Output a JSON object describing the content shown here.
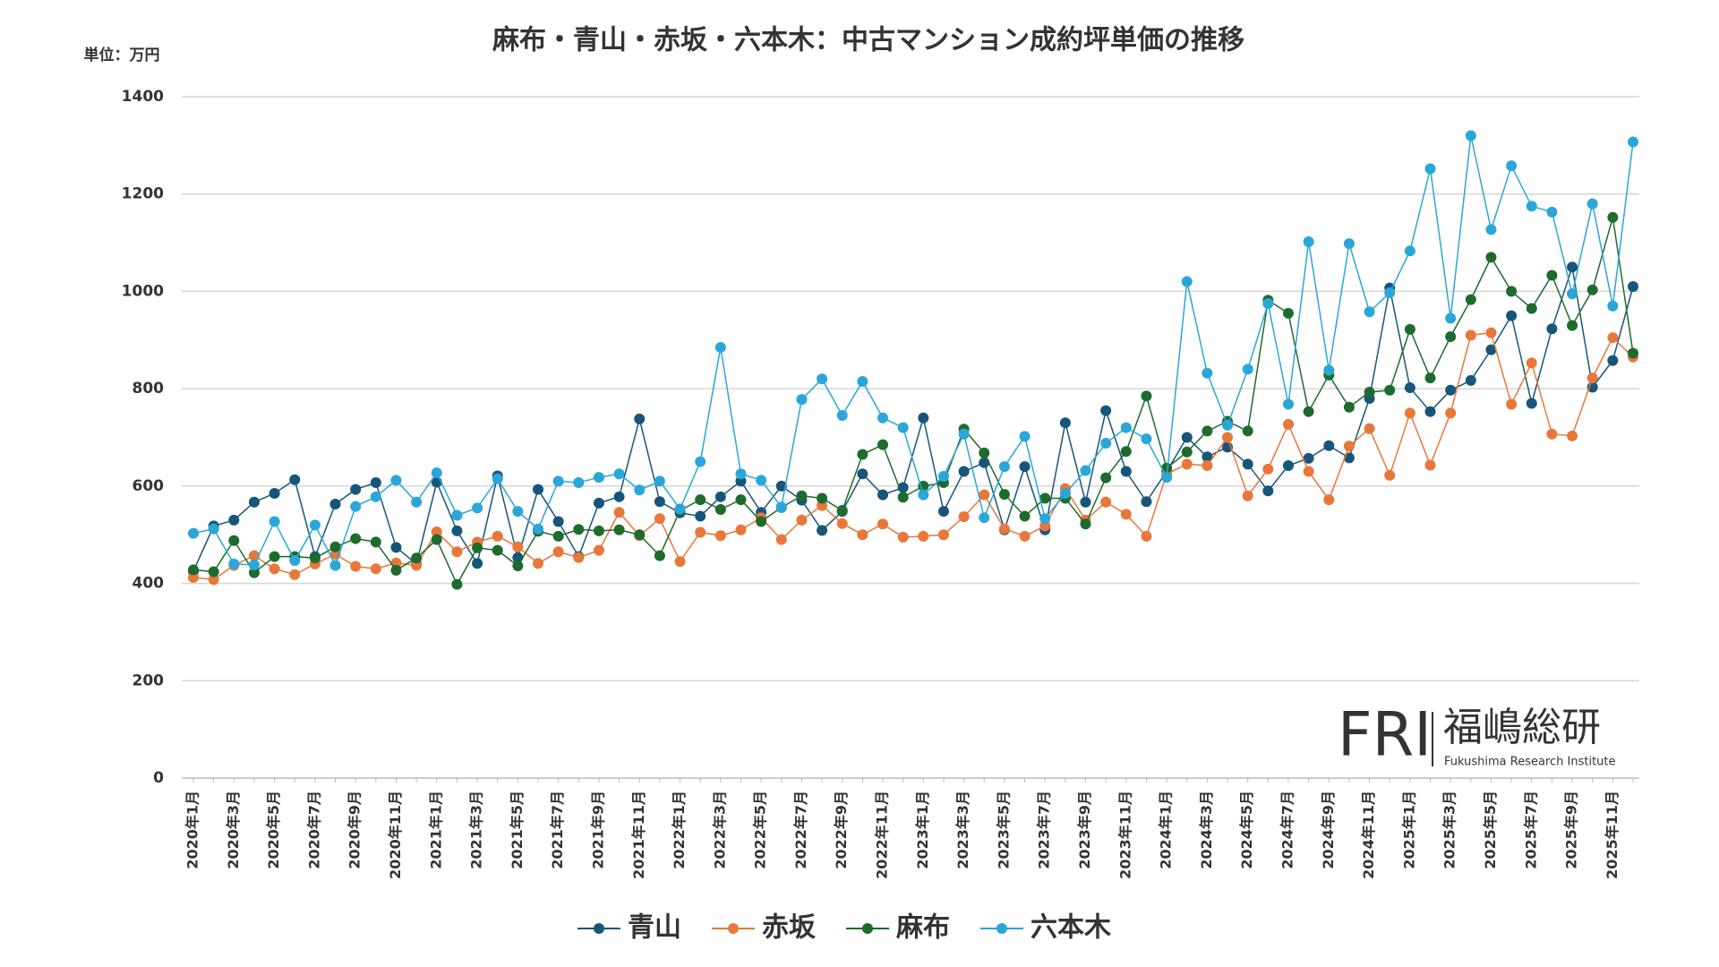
{
  "chart_data": {
    "type": "line",
    "title": "麻布・青山・赤坂・六本木：中古マンション成約坪単価の推移",
    "y_unit_label": "単位：万円",
    "categories": [
      "2020年1月",
      null,
      "2020年3月",
      null,
      "2020年5月",
      null,
      "2020年7月",
      null,
      "2020年9月",
      null,
      "2020年11月",
      null,
      "2021年1月",
      null,
      "2021年3月",
      null,
      "2021年5月",
      null,
      "2021年7月",
      null,
      "2021年9月",
      null,
      "2021年11月",
      null,
      "2022年1月",
      null,
      "2022年3月",
      null,
      "2022年5月",
      null,
      "2022年7月",
      null,
      "2022年9月",
      null,
      "2022年11月",
      null,
      "2023年1月",
      null,
      "2023年3月",
      null,
      "2023年5月",
      null,
      "2023年7月",
      null,
      "2023年9月",
      null,
      "2023年11月",
      null,
      "2024年1月",
      null,
      "2024年3月",
      null,
      "2024年5月",
      null,
      "2024年7月",
      null,
      "2024年9月",
      null,
      "2024年11月",
      null,
      "2025年1月",
      null,
      "2025年3月",
      null,
      "2025年5月",
      null,
      "2025年7月",
      null,
      "2025年9月",
      null,
      "2025年11月",
      null
    ],
    "series": [
      {
        "name": "青山",
        "color": "#17567a",
        "values": [
          425,
          518,
          530,
          567,
          585,
          613,
          455,
          563,
          593,
          607,
          474,
          440,
          608,
          508,
          441,
          621,
          453,
          593,
          527,
          455,
          565,
          578,
          738,
          568,
          545,
          538,
          578,
          610,
          546,
          600,
          571,
          509,
          548,
          625,
          582,
          597,
          740,
          548,
          630,
          648,
          510,
          640,
          510,
          730,
          567,
          755,
          630,
          568,
          630,
          700,
          660,
          680,
          645,
          590,
          642,
          657,
          683,
          658,
          780,
          1007,
          802,
          753,
          797,
          817,
          880,
          950,
          770,
          923,
          1050,
          803,
          858,
          1010
        ]
      },
      {
        "name": "赤坂",
        "color": "#e8773a",
        "values": [
          412,
          408,
          437,
          457,
          430,
          418,
          440,
          460,
          435,
          430,
          442,
          437,
          506,
          465,
          485,
          497,
          475,
          441,
          465,
          453,
          468,
          546,
          498,
          533,
          445,
          505,
          498,
          510,
          535,
          490,
          530,
          560,
          523,
          500,
          522,
          495,
          497,
          500,
          537,
          582,
          512,
          497,
          518,
          595,
          530,
          567,
          542,
          497,
          625,
          645,
          642,
          700,
          580,
          635,
          727,
          630,
          572,
          682,
          718,
          622,
          750,
          643,
          750,
          910,
          915,
          768,
          853,
          707,
          703,
          822,
          905,
          865
        ]
      },
      {
        "name": "麻布",
        "color": "#1e6b2e",
        "values": [
          428,
          424,
          488,
          422,
          455,
          455,
          452,
          475,
          492,
          485,
          427,
          452,
          490,
          398,
          473,
          468,
          436,
          507,
          497,
          511,
          508,
          510,
          500,
          457,
          550,
          572,
          552,
          572,
          527,
          556,
          580,
          575,
          550,
          665,
          685,
          577,
          600,
          607,
          717,
          668,
          583,
          538,
          575,
          575,
          522,
          617,
          671,
          785,
          637,
          670,
          713,
          733,
          713,
          982,
          955,
          753,
          828,
          762,
          793,
          797,
          922,
          822,
          907,
          983,
          1070,
          1000,
          965,
          1033,
          930,
          1003,
          1152,
          873
        ]
      },
      {
        "name": "六本木",
        "color": "#2aa6d9",
        "values": [
          503,
          512,
          440,
          438,
          527,
          447,
          520,
          437,
          558,
          578,
          612,
          567,
          627,
          540,
          555,
          615,
          548,
          512,
          610,
          607,
          618,
          625,
          592,
          610,
          553,
          650,
          885,
          625,
          612,
          557,
          778,
          820,
          745,
          815,
          740,
          720,
          582,
          620,
          707,
          535,
          640,
          702,
          533,
          585,
          632,
          688,
          720,
          697,
          618,
          1020,
          832,
          725,
          840,
          975,
          768,
          1102,
          838,
          1098,
          958,
          997,
          1083,
          1252,
          945,
          1320,
          1127,
          1258,
          1175,
          1163,
          995,
          1180,
          970,
          1307
        ]
      }
    ],
    "ylim": [
      0,
      1400
    ],
    "yticks": [
      0,
      200,
      400,
      600,
      800,
      1000,
      1200,
      1400
    ],
    "grid": true
  },
  "brand": {
    "mark": "FRI",
    "name": "福嶋総研",
    "subtitle": "Fukushima Research Institute"
  }
}
